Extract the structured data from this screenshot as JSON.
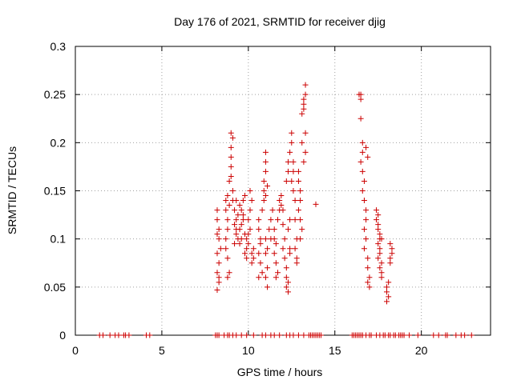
{
  "chart_data": {
    "type": "scatter",
    "title": "Day 176 of 2021, SRMTID for receiver djig",
    "xlabel": "GPS time / hours",
    "ylabel": "SRMTID / TECUs",
    "xlim": [
      0,
      24
    ],
    "ylim": [
      0,
      0.3
    ],
    "x_ticks": [
      0,
      5,
      10,
      15,
      20
    ],
    "x_tick_labels": [
      "0",
      "5",
      "10",
      "15",
      "20"
    ],
    "y_ticks": [
      0,
      0.05,
      0.1,
      0.15,
      0.2,
      0.25,
      0.3
    ],
    "y_tick_labels": [
      "0",
      "0.05",
      "0.1",
      "0.15",
      "0.2",
      "0.25",
      "0.3"
    ],
    "grid": true,
    "marker": "plus",
    "marker_color": "#cc0000",
    "series": [
      {
        "name": "SRMTID",
        "points": [
          [
            1.4,
            0
          ],
          [
            1.6,
            0
          ],
          [
            2.0,
            0
          ],
          [
            2.3,
            0
          ],
          [
            2.5,
            0
          ],
          [
            2.8,
            0
          ],
          [
            2.9,
            0
          ],
          [
            3.1,
            0
          ],
          [
            4.1,
            0
          ],
          [
            4.3,
            0
          ],
          [
            8.1,
            0
          ],
          [
            8.2,
            0
          ],
          [
            8.3,
            0
          ],
          [
            8.6,
            0
          ],
          [
            8.8,
            0
          ],
          [
            8.9,
            0
          ],
          [
            9.1,
            0
          ],
          [
            9.3,
            0
          ],
          [
            9.6,
            0
          ],
          [
            9.9,
            0
          ],
          [
            10.3,
            0
          ],
          [
            10.8,
            0
          ],
          [
            11.0,
            0
          ],
          [
            11.3,
            0
          ],
          [
            11.5,
            0
          ],
          [
            11.8,
            0
          ],
          [
            12.2,
            0
          ],
          [
            12.4,
            0
          ],
          [
            12.6,
            0
          ],
          [
            12.9,
            0
          ],
          [
            13.2,
            0
          ],
          [
            13.5,
            0
          ],
          [
            13.6,
            0
          ],
          [
            13.7,
            0
          ],
          [
            13.8,
            0
          ],
          [
            13.9,
            0
          ],
          [
            14.0,
            0
          ],
          [
            14.1,
            0
          ],
          [
            14.2,
            0
          ],
          [
            16.0,
            0
          ],
          [
            16.1,
            0
          ],
          [
            16.2,
            0
          ],
          [
            16.3,
            0
          ],
          [
            16.4,
            0
          ],
          [
            16.5,
            0
          ],
          [
            16.6,
            0
          ],
          [
            16.8,
            0
          ],
          [
            17.0,
            0
          ],
          [
            17.1,
            0
          ],
          [
            17.4,
            0
          ],
          [
            17.6,
            0
          ],
          [
            17.8,
            0
          ],
          [
            17.9,
            0
          ],
          [
            18.1,
            0
          ],
          [
            18.2,
            0
          ],
          [
            18.4,
            0
          ],
          [
            18.5,
            0
          ],
          [
            18.7,
            0
          ],
          [
            18.8,
            0
          ],
          [
            18.9,
            0
          ],
          [
            19.0,
            0
          ],
          [
            19.3,
            0
          ],
          [
            19.8,
            0
          ],
          [
            20.7,
            0
          ],
          [
            21.0,
            0
          ],
          [
            21.4,
            0
          ],
          [
            21.5,
            0
          ],
          [
            22.0,
            0
          ],
          [
            22.3,
            0
          ],
          [
            22.5,
            0
          ],
          [
            22.9,
            0
          ],
          [
            8.2,
            0.13
          ],
          [
            8.2,
            0.12
          ],
          [
            8.3,
            0.11
          ],
          [
            8.3,
            0.1
          ],
          [
            8.2,
            0.105
          ],
          [
            8.4,
            0.09
          ],
          [
            8.2,
            0.085
          ],
          [
            8.3,
            0.075
          ],
          [
            8.2,
            0.065
          ],
          [
            8.3,
            0.06
          ],
          [
            8.3,
            0.055
          ],
          [
            8.2,
            0.047
          ],
          [
            8.7,
            0.14
          ],
          [
            8.7,
            0.13
          ],
          [
            8.8,
            0.12
          ],
          [
            8.8,
            0.11
          ],
          [
            8.7,
            0.1
          ],
          [
            8.9,
            0.135
          ],
          [
            8.8,
            0.145
          ],
          [
            8.7,
            0.09
          ],
          [
            8.8,
            0.08
          ],
          [
            8.9,
            0.065
          ],
          [
            8.8,
            0.06
          ],
          [
            8.9,
            0.16
          ],
          [
            9.0,
            0.175
          ],
          [
            9.0,
            0.185
          ],
          [
            9.0,
            0.21
          ],
          [
            9.1,
            0.205
          ],
          [
            9.0,
            0.195
          ],
          [
            9.0,
            0.165
          ],
          [
            9.1,
            0.15
          ],
          [
            9.1,
            0.14
          ],
          [
            9.2,
            0.13
          ],
          [
            9.3,
            0.12
          ],
          [
            9.2,
            0.115
          ],
          [
            9.3,
            0.11
          ],
          [
            9.4,
            0.1
          ],
          [
            9.2,
            0.095
          ],
          [
            9.3,
            0.105
          ],
          [
            9.4,
            0.125
          ],
          [
            9.5,
            0.135
          ],
          [
            9.3,
            0.14
          ],
          [
            9.5,
            0.11
          ],
          [
            9.6,
            0.1
          ],
          [
            9.5,
            0.095
          ],
          [
            9.6,
            0.115
          ],
          [
            9.7,
            0.125
          ],
          [
            9.6,
            0.13
          ],
          [
            9.7,
            0.14
          ],
          [
            9.8,
            0.145
          ],
          [
            9.7,
            0.12
          ],
          [
            9.8,
            0.105
          ],
          [
            9.9,
            0.1
          ],
          [
            9.9,
            0.09
          ],
          [
            9.8,
            0.085
          ],
          [
            9.9,
            0.08
          ],
          [
            10.0,
            0.095
          ],
          [
            10.0,
            0.105
          ],
          [
            10.1,
            0.11
          ],
          [
            10.0,
            0.12
          ],
          [
            10.1,
            0.13
          ],
          [
            10.2,
            0.14
          ],
          [
            10.1,
            0.15
          ],
          [
            10.2,
            0.085
          ],
          [
            10.3,
            0.09
          ],
          [
            10.3,
            0.08
          ],
          [
            10.2,
            0.075
          ],
          [
            10.6,
            0.12
          ],
          [
            10.6,
            0.11
          ],
          [
            10.7,
            0.1
          ],
          [
            10.7,
            0.095
          ],
          [
            10.6,
            0.085
          ],
          [
            10.7,
            0.075
          ],
          [
            10.8,
            0.065
          ],
          [
            10.6,
            0.06
          ],
          [
            10.8,
            0.13
          ],
          [
            10.9,
            0.14
          ],
          [
            10.9,
            0.15
          ],
          [
            10.9,
            0.16
          ],
          [
            11.0,
            0.17
          ],
          [
            11.0,
            0.18
          ],
          [
            11.0,
            0.19
          ],
          [
            11.1,
            0.155
          ],
          [
            11.0,
            0.145
          ],
          [
            11.0,
            0.1
          ],
          [
            11.1,
            0.09
          ],
          [
            11.0,
            0.085
          ],
          [
            11.1,
            0.07
          ],
          [
            11.0,
            0.06
          ],
          [
            11.1,
            0.05
          ],
          [
            11.2,
            0.11
          ],
          [
            11.3,
            0.12
          ],
          [
            11.4,
            0.13
          ],
          [
            11.3,
            0.1
          ],
          [
            11.5,
            0.11
          ],
          [
            11.5,
            0.1
          ],
          [
            11.6,
            0.095
          ],
          [
            11.5,
            0.085
          ],
          [
            11.6,
            0.075
          ],
          [
            11.7,
            0.065
          ],
          [
            11.6,
            0.06
          ],
          [
            11.8,
            0.14
          ],
          [
            11.8,
            0.13
          ],
          [
            11.7,
            0.12
          ],
          [
            11.9,
            0.145
          ],
          [
            11.9,
            0.135
          ],
          [
            12.0,
            0.13
          ],
          [
            12.0,
            0.115
          ],
          [
            12.1,
            0.1
          ],
          [
            12.0,
            0.09
          ],
          [
            12.1,
            0.08
          ],
          [
            12.2,
            0.07
          ],
          [
            12.2,
            0.06
          ],
          [
            12.3,
            0.055
          ],
          [
            12.2,
            0.05
          ],
          [
            12.3,
            0.045
          ],
          [
            12.4,
            0.09
          ],
          [
            12.4,
            0.085
          ],
          [
            12.3,
            0.11
          ],
          [
            12.4,
            0.12
          ],
          [
            12.2,
            0.16
          ],
          [
            12.3,
            0.17
          ],
          [
            12.3,
            0.18
          ],
          [
            12.4,
            0.19
          ],
          [
            12.5,
            0.2
          ],
          [
            12.5,
            0.21
          ],
          [
            12.6,
            0.18
          ],
          [
            12.6,
            0.17
          ],
          [
            12.5,
            0.16
          ],
          [
            12.6,
            0.15
          ],
          [
            12.7,
            0.14
          ],
          [
            12.7,
            0.12
          ],
          [
            12.8,
            0.1
          ],
          [
            12.7,
            0.09
          ],
          [
            12.8,
            0.08
          ],
          [
            12.8,
            0.075
          ],
          [
            12.9,
            0.17
          ],
          [
            12.9,
            0.16
          ],
          [
            13.0,
            0.15
          ],
          [
            13.0,
            0.14
          ],
          [
            12.9,
            0.13
          ],
          [
            13.0,
            0.12
          ],
          [
            13.1,
            0.11
          ],
          [
            13.0,
            0.1
          ],
          [
            13.1,
            0.2
          ],
          [
            13.1,
            0.23
          ],
          [
            13.2,
            0.235
          ],
          [
            13.2,
            0.245
          ],
          [
            13.3,
            0.25
          ],
          [
            13.3,
            0.26
          ],
          [
            13.2,
            0.24
          ],
          [
            13.3,
            0.21
          ],
          [
            13.3,
            0.19
          ],
          [
            13.2,
            0.18
          ],
          [
            13.9,
            0.136
          ],
          [
            16.4,
            0.25
          ],
          [
            16.5,
            0.25
          ],
          [
            16.5,
            0.245
          ],
          [
            16.5,
            0.225
          ],
          [
            16.6,
            0.2
          ],
          [
            16.6,
            0.19
          ],
          [
            16.5,
            0.18
          ],
          [
            16.6,
            0.17
          ],
          [
            16.7,
            0.16
          ],
          [
            16.6,
            0.15
          ],
          [
            16.7,
            0.14
          ],
          [
            16.8,
            0.13
          ],
          [
            16.8,
            0.12
          ],
          [
            16.7,
            0.11
          ],
          [
            16.8,
            0.1
          ],
          [
            16.7,
            0.09
          ],
          [
            16.9,
            0.08
          ],
          [
            16.9,
            0.07
          ],
          [
            17.0,
            0.06
          ],
          [
            16.9,
            0.055
          ],
          [
            17.0,
            0.05
          ],
          [
            16.8,
            0.195
          ],
          [
            16.9,
            0.185
          ],
          [
            17.4,
            0.13
          ],
          [
            17.5,
            0.125
          ],
          [
            17.4,
            0.12
          ],
          [
            17.5,
            0.115
          ],
          [
            17.5,
            0.11
          ],
          [
            17.6,
            0.1
          ],
          [
            17.5,
            0.095
          ],
          [
            17.6,
            0.09
          ],
          [
            17.6,
            0.085
          ],
          [
            17.5,
            0.08
          ],
          [
            17.7,
            0.075
          ],
          [
            17.6,
            0.07
          ],
          [
            17.7,
            0.065
          ],
          [
            17.7,
            0.06
          ],
          [
            17.6,
            0.105
          ],
          [
            17.7,
            0.1
          ],
          [
            18.0,
            0.05
          ],
          [
            18.0,
            0.045
          ],
          [
            18.1,
            0.04
          ],
          [
            18.0,
            0.035
          ],
          [
            18.1,
            0.055
          ],
          [
            18.2,
            0.08
          ],
          [
            18.2,
            0.075
          ],
          [
            18.3,
            0.09
          ],
          [
            18.3,
            0.085
          ],
          [
            18.2,
            0.095
          ]
        ]
      }
    ]
  }
}
